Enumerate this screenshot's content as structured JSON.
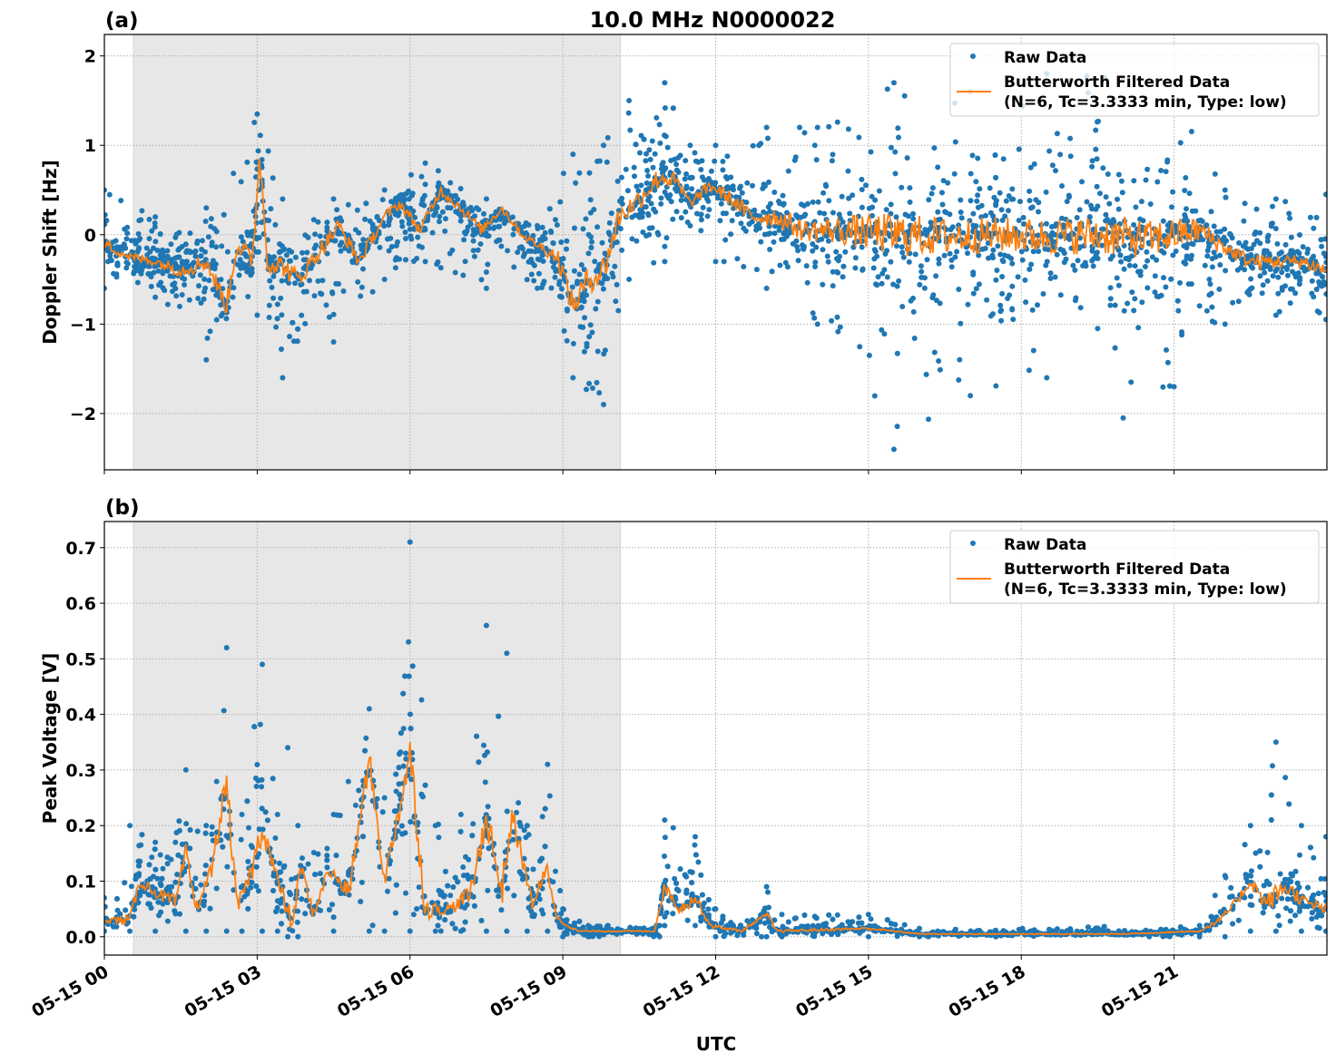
{
  "title": "10.0 MHz N0000022",
  "xlabel": "UTC",
  "x_tick_labels": [
    "05-15 00",
    "05-15 03",
    "05-15 06",
    "05-15 09",
    "05-15 12",
    "05-15 15",
    "05-15 18",
    "05-15 21"
  ],
  "colors": {
    "raw": "#1f77b4",
    "filtered": "#ff7f0e",
    "shade": "#e7e7e7"
  },
  "chart_data": [
    {
      "panel_label": "(a)",
      "type": "scatter+line",
      "ylabel": "Doppler Shift [Hz]",
      "xlim_hours": [
        0,
        24
      ],
      "ylim": [
        -2.63,
        2.24
      ],
      "y_ticks": [
        2,
        1,
        0,
        -1,
        -2
      ],
      "y_tick_labels": [
        "2",
        "1",
        "0",
        "−1",
        "−2"
      ],
      "grid": true,
      "shaded_interval_hours": [
        0.57,
        10.13
      ],
      "legend_position": "top-right",
      "legend": {
        "raw": "Raw Data",
        "filtered_line1": "Butterworth Filtered Data",
        "filtered_line2": "(N=6, Tc=3.3333 min, Type: low)"
      },
      "filtered": [
        [
          0,
          -0.1
        ],
        [
          0.5,
          -0.25
        ],
        [
          1,
          -0.3
        ],
        [
          1.5,
          -0.4
        ],
        [
          2,
          -0.3
        ],
        [
          2.4,
          -0.8
        ],
        [
          2.6,
          -0.1
        ],
        [
          2.9,
          -0.3
        ],
        [
          3.05,
          0.9
        ],
        [
          3.2,
          -0.3
        ],
        [
          3.5,
          -0.35
        ],
        [
          3.8,
          -0.5
        ],
        [
          4.2,
          -0.2
        ],
        [
          4.6,
          0.1
        ],
        [
          5,
          -0.3
        ],
        [
          5.5,
          0.2
        ],
        [
          5.8,
          0.35
        ],
        [
          6.2,
          0.05
        ],
        [
          6.6,
          0.5
        ],
        [
          7,
          0.3
        ],
        [
          7.4,
          0.05
        ],
        [
          7.8,
          0.3
        ],
        [
          8.2,
          0.0
        ],
        [
          8.6,
          -0.15
        ],
        [
          8.9,
          -0.25
        ],
        [
          9.2,
          -0.8
        ],
        [
          9.5,
          -0.5
        ],
        [
          9.8,
          -0.4
        ],
        [
          10.1,
          0.2
        ],
        [
          10.5,
          0.4
        ],
        [
          10.9,
          0.65
        ],
        [
          11.2,
          0.6
        ],
        [
          11.5,
          0.35
        ],
        [
          11.9,
          0.55
        ],
        [
          12.3,
          0.4
        ],
        [
          12.7,
          0.2
        ],
        [
          13.2,
          0.2
        ],
        [
          13.7,
          0.05
        ],
        [
          14.5,
          0.05
        ],
        [
          15.5,
          0.0
        ],
        [
          16.5,
          -0.02
        ],
        [
          17.5,
          0.0
        ],
        [
          18.5,
          -0.02
        ],
        [
          19.5,
          0.0
        ],
        [
          20.5,
          -0.05
        ],
        [
          21.5,
          0.05
        ],
        [
          22,
          -0.15
        ],
        [
          22.5,
          -0.3
        ],
        [
          23,
          -0.3
        ],
        [
          23.5,
          -0.3
        ],
        [
          23.98,
          -0.4
        ]
      ],
      "raw_range": [
        [
          0,
          -0.6,
          0.5
        ],
        [
          1,
          -0.7,
          0.2
        ],
        [
          2,
          -1.4,
          0.3
        ],
        [
          3,
          -0.9,
          1.35
        ],
        [
          3.5,
          -1.6,
          0.4
        ],
        [
          4.5,
          -1.2,
          0.4
        ],
        [
          5.5,
          -0.5,
          0.5
        ],
        [
          6.3,
          -0.3,
          0.8
        ],
        [
          7.5,
          -0.6,
          0.4
        ],
        [
          8.5,
          -0.6,
          0.1
        ],
        [
          9.2,
          -1.6,
          0.9
        ],
        [
          9.8,
          -1.9,
          1.0
        ],
        [
          10.3,
          -0.5,
          1.5
        ],
        [
          11,
          -0.3,
          1.7
        ],
        [
          11.5,
          0.1,
          1.0
        ],
        [
          12,
          -0.3,
          1.0
        ],
        [
          13,
          -0.6,
          1.2
        ],
        [
          14,
          -1.0,
          1.2
        ],
        [
          15.5,
          -2.4,
          1.7
        ],
        [
          17,
          -1.8,
          1.6
        ],
        [
          18.5,
          -1.6,
          1.8
        ],
        [
          20,
          -2.05,
          1.75
        ],
        [
          21,
          -1.7,
          1.5
        ],
        [
          22,
          -1.0,
          0.5
        ],
        [
          23,
          -0.9,
          0.4
        ],
        [
          23.98,
          -0.95,
          0.45
        ]
      ]
    },
    {
      "panel_label": "(b)",
      "type": "scatter+line",
      "ylabel": "Peak Voltage [V]",
      "xlim_hours": [
        0,
        24
      ],
      "ylim": [
        -0.033,
        0.747
      ],
      "y_ticks": [
        0.0,
        0.1,
        0.2,
        0.3,
        0.4,
        0.5,
        0.6,
        0.7
      ],
      "y_tick_labels": [
        "0.0",
        "0.1",
        "0.2",
        "0.3",
        "0.4",
        "0.5",
        "0.6",
        "0.7"
      ],
      "grid": true,
      "shaded_interval_hours": [
        0.57,
        10.13
      ],
      "legend_position": "top-right",
      "legend": {
        "raw": "Raw Data",
        "filtered_line1": "Butterworth Filtered Data",
        "filtered_line2": "(N=6, Tc=3.3333 min, Type: low)"
      },
      "filtered": [
        [
          0,
          0.03
        ],
        [
          0.5,
          0.03
        ],
        [
          0.7,
          0.1
        ],
        [
          1,
          0.08
        ],
        [
          1.4,
          0.06
        ],
        [
          1.6,
          0.15
        ],
        [
          1.8,
          0.05
        ],
        [
          2.1,
          0.12
        ],
        [
          2.4,
          0.28
        ],
        [
          2.6,
          0.05
        ],
        [
          2.9,
          0.12
        ],
        [
          3.1,
          0.2
        ],
        [
          3.4,
          0.1
        ],
        [
          3.7,
          0.02
        ],
        [
          3.85,
          0.13
        ],
        [
          4.1,
          0.04
        ],
        [
          4.4,
          0.12
        ],
        [
          4.8,
          0.08
        ],
        [
          5.2,
          0.32
        ],
        [
          5.5,
          0.1
        ],
        [
          6.0,
          0.33
        ],
        [
          6.3,
          0.05
        ],
        [
          6.8,
          0.05
        ],
        [
          7.2,
          0.08
        ],
        [
          7.5,
          0.22
        ],
        [
          7.8,
          0.08
        ],
        [
          8.0,
          0.22
        ],
        [
          8.4,
          0.06
        ],
        [
          8.7,
          0.12
        ],
        [
          8.9,
          0.03
        ],
        [
          9.3,
          0.01
        ],
        [
          10.8,
          0.01
        ],
        [
          11.0,
          0.09
        ],
        [
          11.3,
          0.05
        ],
        [
          11.6,
          0.07
        ],
        [
          11.9,
          0.02
        ],
        [
          12.5,
          0.01
        ],
        [
          13.0,
          0.04
        ],
        [
          13.2,
          0.01
        ],
        [
          15.0,
          0.015
        ],
        [
          16.0,
          0.005
        ],
        [
          20.0,
          0.005
        ],
        [
          21.5,
          0.01
        ],
        [
          21.9,
          0.03
        ],
        [
          22.2,
          0.06
        ],
        [
          22.5,
          0.1
        ],
        [
          22.8,
          0.06
        ],
        [
          23.2,
          0.09
        ],
        [
          23.6,
          0.06
        ],
        [
          23.98,
          0.05
        ]
      ],
      "raw_range": [
        [
          0,
          0.01,
          0.07
        ],
        [
          0.5,
          0.01,
          0.2
        ],
        [
          1,
          0.01,
          0.17
        ],
        [
          1.6,
          0.01,
          0.3
        ],
        [
          2,
          0.01,
          0.2
        ],
        [
          2.4,
          0.01,
          0.52
        ],
        [
          2.7,
          0.01,
          0.22
        ],
        [
          3.1,
          0.01,
          0.49
        ],
        [
          3.4,
          0.01,
          0.22
        ],
        [
          3.6,
          0.0,
          0.34
        ],
        [
          3.8,
          0.0,
          0.2
        ],
        [
          4.5,
          0.01,
          0.22
        ],
        [
          5.2,
          0.01,
          0.41
        ],
        [
          5.5,
          0.01,
          0.25
        ],
        [
          6.0,
          0.01,
          0.71
        ],
        [
          6.5,
          0.01,
          0.2
        ],
        [
          7.0,
          0.01,
          0.22
        ],
        [
          7.5,
          0.01,
          0.56
        ],
        [
          7.9,
          0.01,
          0.51
        ],
        [
          8.3,
          0.01,
          0.2
        ],
        [
          8.7,
          0.01,
          0.31
        ],
        [
          9.0,
          0.0,
          0.05
        ],
        [
          9.5,
          0.0,
          0.02
        ],
        [
          10.9,
          0.0,
          0.02
        ],
        [
          11.0,
          0.02,
          0.21
        ],
        [
          11.6,
          0.02,
          0.18
        ],
        [
          12.0,
          0.0,
          0.05
        ],
        [
          12.9,
          0.0,
          0.04
        ],
        [
          13.0,
          0.0,
          0.09
        ],
        [
          13.3,
          0.0,
          0.04
        ],
        [
          15.0,
          0.0,
          0.04
        ],
        [
          16.0,
          0.0,
          0.015
        ],
        [
          21.5,
          0.0,
          0.02
        ],
        [
          22.0,
          0.0,
          0.11
        ],
        [
          22.5,
          0.01,
          0.2
        ],
        [
          23.0,
          0.01,
          0.35
        ],
        [
          23.5,
          0.01,
          0.2
        ],
        [
          23.98,
          0.01,
          0.18
        ]
      ]
    }
  ]
}
